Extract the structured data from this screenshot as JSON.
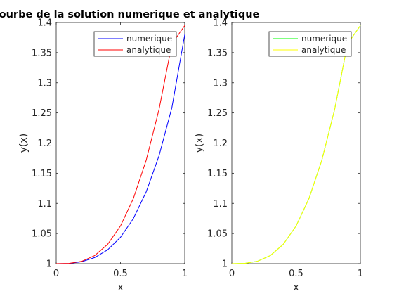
{
  "chart_data": [
    {
      "type": "line",
      "title": "Courbe de la solution numerique et analytique",
      "xlabel": "x",
      "ylabel": "y(x)",
      "xlim": [
        0,
        1
      ],
      "ylim": [
        1,
        1.4
      ],
      "xticks": [
        "0",
        "0.5",
        "1"
      ],
      "yticks": [
        "1",
        "1.05",
        "1.1",
        "1.15",
        "1.2",
        "1.25",
        "1.3",
        "1.35",
        "1.4"
      ],
      "legend_position": "top-right",
      "grid": false,
      "series": [
        {
          "name": "numerique",
          "color": "#0000ff",
          "x": [
            0,
            0.1,
            0.2,
            0.3,
            0.4,
            0.5,
            0.6,
            0.7,
            0.8,
            0.9,
            1.0
          ],
          "y": [
            1.0,
            1.0003,
            1.0032,
            1.0102,
            1.0229,
            1.0437,
            1.0748,
            1.1191,
            1.1791,
            1.2589,
            1.38
          ]
        },
        {
          "name": "analytique",
          "color": "#ff0000",
          "x": [
            0,
            0.1,
            0.2,
            0.3,
            0.4,
            0.5,
            0.6,
            0.7,
            0.8,
            0.9,
            1.0
          ],
          "y": [
            1.0,
            1.0005,
            1.004,
            1.0135,
            1.032,
            1.0625,
            1.108,
            1.1715,
            1.256,
            1.3645,
            1.395
          ]
        }
      ]
    },
    {
      "type": "line",
      "title": "",
      "xlabel": "x",
      "ylabel": "y(x)",
      "xlim": [
        0,
        1
      ],
      "ylim": [
        1,
        1.4
      ],
      "xticks": [
        "0",
        "0.5",
        "1"
      ],
      "yticks": [
        "1",
        "1.05",
        "1.1",
        "1.15",
        "1.2",
        "1.25",
        "1.3",
        "1.35",
        "1.4"
      ],
      "legend_position": "top-right",
      "grid": false,
      "series": [
        {
          "name": "numerique",
          "color": "#00ff00",
          "x": [
            0,
            0.1,
            0.2,
            0.3,
            0.4,
            0.5,
            0.6,
            0.7,
            0.8,
            0.9,
            1.0
          ],
          "y": [
            1.0,
            1.0005,
            1.004,
            1.0135,
            1.032,
            1.0625,
            1.108,
            1.1715,
            1.256,
            1.3645,
            1.395
          ]
        },
        {
          "name": "analytique",
          "color": "#ffff00",
          "x": [
            0,
            0.1,
            0.2,
            0.3,
            0.4,
            0.5,
            0.6,
            0.7,
            0.8,
            0.9,
            1.0
          ],
          "y": [
            1.0,
            1.0005,
            1.004,
            1.0135,
            1.032,
            1.0625,
            1.108,
            1.1715,
            1.256,
            1.3645,
            1.395
          ]
        }
      ]
    }
  ]
}
